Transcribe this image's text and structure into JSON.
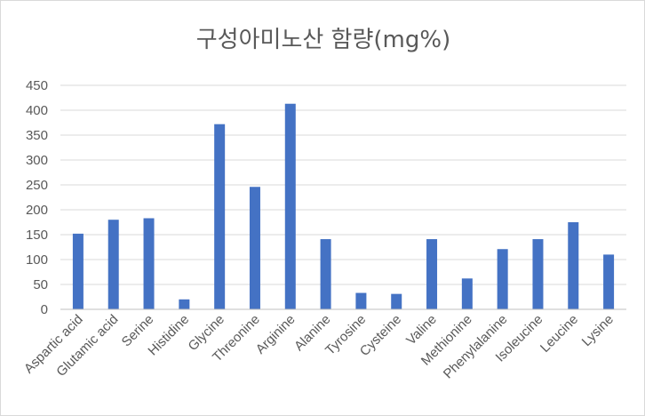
{
  "chart_data": {
    "type": "bar",
    "title": "구성아미노산 함량(mg%)",
    "xlabel": "",
    "ylabel": "",
    "ylim": [
      0,
      450
    ],
    "yticks": [
      0,
      50,
      100,
      150,
      200,
      250,
      300,
      350,
      400,
      450
    ],
    "grid": true,
    "legend": "none",
    "bar_color": "#4472c4",
    "categories": [
      "Aspartic acid",
      "Glutamic acid",
      "Serine",
      "Histidine",
      "Glycine",
      "Threonine",
      "Arginine",
      "Alanine",
      "Tyrosine",
      "Cysteine",
      "Valine",
      "Methionine",
      "Phenylalanine",
      "Isoleucine",
      "Leucine",
      "Lysine"
    ],
    "values": [
      152,
      180,
      183,
      20,
      372,
      246,
      413,
      141,
      33,
      31,
      141,
      62,
      121,
      141,
      175,
      110
    ]
  }
}
